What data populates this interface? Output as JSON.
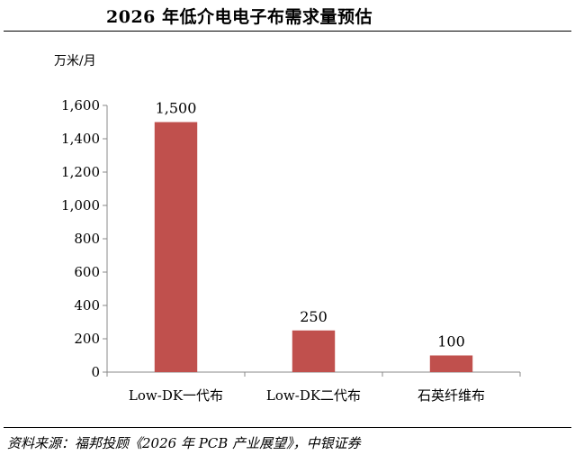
{
  "chart_data": {
    "type": "bar",
    "title": "2026 年低介电电子布需求量预估",
    "unit": "万米/月",
    "categories": [
      "Low-DK一代布",
      "Low-DK二代布",
      "石英纤维布"
    ],
    "values": [
      1500,
      250,
      100
    ],
    "data_labels": [
      "1,500",
      "250",
      "100"
    ],
    "ylim": [
      0,
      1600
    ],
    "yticks": [
      0,
      200,
      400,
      600,
      800,
      1000,
      1200,
      1400,
      1600
    ],
    "ytick_labels": [
      "0",
      "200",
      "400",
      "600",
      "800",
      "1,000",
      "1,200",
      "1,400",
      "1,600"
    ],
    "bar_color": "#c0504d",
    "grid": false,
    "legend": "none"
  },
  "source": "资料来源：福邦投顾《2026 年 PCB 产业展望》，中银证券"
}
